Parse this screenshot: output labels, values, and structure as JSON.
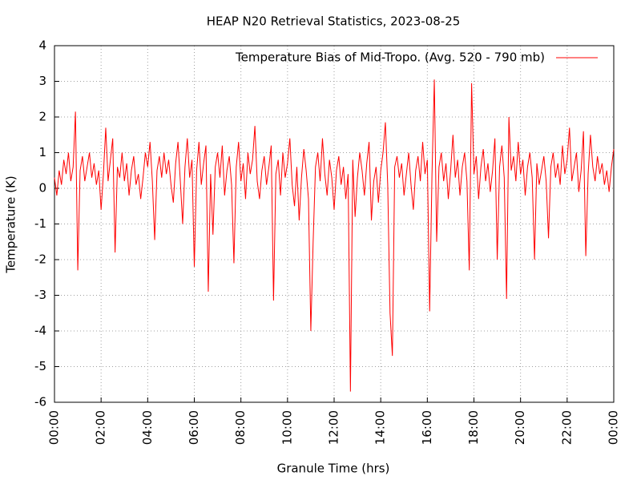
{
  "chart_data": {
    "type": "line",
    "title": "HEAP N20 Retrieval Statistics, 2023-08-25",
    "xlabel": "Granule Time (hrs)",
    "ylabel": "Temperature (K)",
    "x": [
      0,
      0.1,
      0.2,
      0.3,
      0.4,
      0.5,
      0.6,
      0.7,
      0.8,
      0.9,
      1,
      1.1,
      1.2,
      1.3,
      1.4,
      1.5,
      1.6,
      1.7,
      1.8,
      1.9,
      2,
      2.1,
      2.2,
      2.3,
      2.4,
      2.5,
      2.6,
      2.7,
      2.8,
      2.9,
      3,
      3.1,
      3.2,
      3.3,
      3.4,
      3.5,
      3.6,
      3.7,
      3.8,
      3.9,
      4,
      4.1,
      4.2,
      4.3,
      4.4,
      4.5,
      4.6,
      4.7,
      4.8,
      4.9,
      5,
      5.1,
      5.2,
      5.3,
      5.4,
      5.5,
      5.6,
      5.7,
      5.8,
      5.9,
      6,
      6.1,
      6.2,
      6.3,
      6.4,
      6.5,
      6.6,
      6.7,
      6.8,
      6.9,
      7,
      7.1,
      7.2,
      7.3,
      7.4,
      7.5,
      7.6,
      7.7,
      7.8,
      7.9,
      8,
      8.1,
      8.2,
      8.3,
      8.4,
      8.5,
      8.6,
      8.7,
      8.8,
      8.9,
      9,
      9.1,
      9.2,
      9.3,
      9.4,
      9.5,
      9.6,
      9.7,
      9.8,
      9.9,
      10,
      10.1,
      10.2,
      10.3,
      10.4,
      10.5,
      10.6,
      10.7,
      10.8,
      10.9,
      11,
      11.1,
      11.2,
      11.3,
      11.4,
      11.5,
      11.6,
      11.7,
      11.8,
      11.9,
      12,
      12.1,
      12.2,
      12.3,
      12.4,
      12.5,
      12.6,
      12.7,
      12.8,
      12.9,
      13,
      13.1,
      13.2,
      13.3,
      13.4,
      13.5,
      13.6,
      13.7,
      13.8,
      13.9,
      14,
      14.1,
      14.2,
      14.3,
      14.4,
      14.5,
      14.6,
      14.7,
      14.8,
      14.9,
      15,
      15.1,
      15.2,
      15.3,
      15.4,
      15.5,
      15.6,
      15.7,
      15.8,
      15.9,
      16,
      16.1,
      16.2,
      16.3,
      16.4,
      16.5,
      16.6,
      16.7,
      16.8,
      16.9,
      17,
      17.1,
      17.2,
      17.3,
      17.4,
      17.5,
      17.6,
      17.7,
      17.8,
      17.9,
      18,
      18.1,
      18.2,
      18.3,
      18.4,
      18.5,
      18.6,
      18.7,
      18.8,
      18.9,
      19,
      19.1,
      19.2,
      19.3,
      19.4,
      19.5,
      19.6,
      19.7,
      19.8,
      19.9,
      20,
      20.1,
      20.2,
      20.3,
      20.4,
      20.5,
      20.6,
      20.7,
      20.8,
      20.9,
      21,
      21.1,
      21.2,
      21.3,
      21.4,
      21.5,
      21.6,
      21.7,
      21.8,
      21.9,
      22,
      22.1,
      22.2,
      22.3,
      22.4,
      22.5,
      22.6,
      22.7,
      22.8,
      22.9,
      23,
      23.1,
      23.2,
      23.3,
      23.4,
      23.5,
      23.6,
      23.7,
      23.8,
      23.9,
      24
    ],
    "series": [
      {
        "name": "Temperature Bias of Mid-Tropo. (Avg. 520 - 790 mb)",
        "color": "#ff0000",
        "values": [
          0.3,
          -0.2,
          0.5,
          0.1,
          0.8,
          0.4,
          1.0,
          0.2,
          0.6,
          2.15,
          -2.3,
          0.5,
          0.9,
          0.2,
          0.6,
          1.0,
          0.3,
          0.7,
          0.1,
          0.5,
          -0.6,
          0.4,
          1.7,
          0.2,
          0.8,
          1.4,
          -1.8,
          0.6,
          0.3,
          1.0,
          0.2,
          0.7,
          -0.2,
          0.5,
          0.9,
          0.1,
          0.4,
          -0.3,
          0.3,
          1.0,
          0.6,
          1.3,
          0.2,
          -1.45,
          0.5,
          0.9,
          0.3,
          1.0,
          0.4,
          0.8,
          0.1,
          -0.4,
          0.7,
          1.3,
          0.2,
          -1.0,
          0.6,
          1.4,
          0.3,
          0.8,
          -2.2,
          0.5,
          1.3,
          0.1,
          0.7,
          1.2,
          -2.9,
          0.4,
          -1.3,
          0.6,
          1.0,
          0.3,
          1.2,
          -0.2,
          0.5,
          0.9,
          0.1,
          -2.1,
          0.6,
          1.3,
          0.2,
          0.7,
          -0.3,
          1.0,
          0.4,
          0.8,
          1.75,
          0.2,
          -0.3,
          0.5,
          0.9,
          0.1,
          0.6,
          1.2,
          -3.15,
          0.4,
          0.8,
          -0.2,
          1.0,
          0.3,
          0.7,
          1.4,
          0.1,
          -0.5,
          0.6,
          -0.9,
          0.3,
          1.1,
          0.5,
          -0.3,
          -4.0,
          -1.5,
          0.6,
          1.0,
          0.2,
          1.4,
          0.4,
          -0.2,
          0.8,
          0.3,
          -0.6,
          0.5,
          0.9,
          0.1,
          0.6,
          -0.3,
          0.4,
          -5.7,
          0.8,
          -0.8,
          0.3,
          1.0,
          0.5,
          -0.2,
          0.7,
          1.3,
          -0.9,
          0.2,
          0.6,
          -0.4,
          0.5,
          1.0,
          1.85,
          0.1,
          -3.5,
          -4.7,
          0.6,
          0.9,
          0.3,
          0.7,
          -0.2,
          0.4,
          1.0,
          0.1,
          -0.6,
          0.5,
          0.9,
          0.2,
          1.3,
          0.4,
          0.8,
          -3.45,
          0.4,
          3.05,
          -1.5,
          0.6,
          1.0,
          0.2,
          0.7,
          -0.3,
          0.5,
          1.5,
          0.3,
          0.8,
          -0.2,
          0.6,
          1.0,
          0.2,
          -2.3,
          2.95,
          0.4,
          0.9,
          -0.3,
          0.6,
          1.1,
          0.2,
          0.7,
          -0.1,
          0.5,
          1.4,
          -2.0,
          0.6,
          1.2,
          0.3,
          -3.1,
          2.0,
          0.5,
          0.9,
          0.2,
          1.3,
          0.4,
          0.8,
          -0.2,
          0.6,
          1.0,
          0.3,
          -2.0,
          0.7,
          0.1,
          0.5,
          0.9,
          0.2,
          -1.4,
          0.6,
          1.0,
          0.3,
          0.7,
          0.1,
          1.2,
          0.4,
          0.8,
          1.7,
          0.2,
          0.6,
          1.0,
          -0.1,
          0.5,
          1.6,
          -1.9,
          0.4,
          1.5,
          0.6,
          0.2,
          0.9,
          0.4,
          0.7,
          0.1,
          0.5,
          -0.1,
          0.6,
          1.1
        ]
      }
    ],
    "xlim": [
      0,
      24
    ],
    "xticks": [
      {
        "value": 0,
        "label": "00:00"
      },
      {
        "value": 2,
        "label": "02:00"
      },
      {
        "value": 4,
        "label": "04:00"
      },
      {
        "value": 6,
        "label": "06:00"
      },
      {
        "value": 8,
        "label": "08:00"
      },
      {
        "value": 10,
        "label": "10:00"
      },
      {
        "value": 12,
        "label": "12:00"
      },
      {
        "value": 14,
        "label": "14:00"
      },
      {
        "value": 16,
        "label": "16:00"
      },
      {
        "value": 18,
        "label": "18:00"
      },
      {
        "value": 20,
        "label": "20:00"
      },
      {
        "value": 22,
        "label": "22:00"
      },
      {
        "value": 24,
        "label": "00:00"
      }
    ],
    "ylim": [
      -6,
      4
    ],
    "yticks": [
      -6,
      -5,
      -4,
      -3,
      -2,
      -1,
      0,
      1,
      2,
      3,
      4
    ],
    "grid": true,
    "legend": "upper right"
  }
}
